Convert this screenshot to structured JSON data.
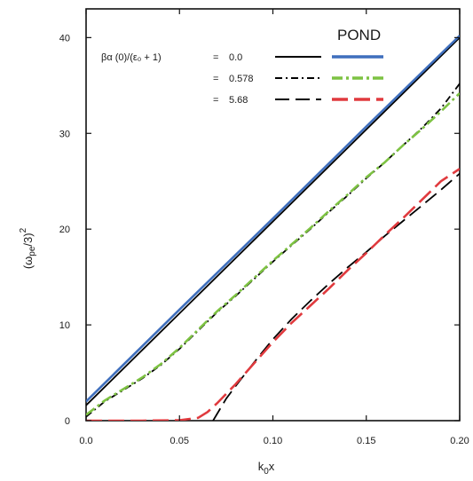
{
  "chart_data": {
    "type": "line",
    "xlabel": "k₀x",
    "ylabel": "(ωpe/3)²",
    "xlim": [
      0.0,
      0.2
    ],
    "ylim": [
      0,
      43
    ],
    "xticks": [
      0.0,
      0.05,
      0.1,
      0.15,
      0.2
    ],
    "xtick_labels": [
      "0.0",
      "0.05",
      "0.10",
      "0.15",
      "0.20"
    ],
    "yticks": [
      0,
      10,
      20,
      30,
      40
    ],
    "ytick_labels": [
      "0",
      "10",
      "20",
      "30",
      "40"
    ],
    "grid": false,
    "legend": {
      "placement": "top-right",
      "param_label": "βα (0)/(ε₀ + 1)",
      "column_header": "POND",
      "entries": [
        {
          "prefix": "=",
          "value": "0.0"
        },
        {
          "prefix": "=",
          "value": "0.578"
        },
        {
          "prefix": "=",
          "value": "5.68"
        }
      ]
    },
    "series": [
      {
        "param": "0.0",
        "style": "solid",
        "color": "#000000",
        "x": [
          0.0,
          0.05,
          0.1,
          0.15,
          0.2
        ],
        "y": [
          1.6,
          11.2,
          20.8,
          30.4,
          40.0
        ]
      },
      {
        "param": "0.0",
        "pond": true,
        "style": "solid",
        "color": "#3f6fbd",
        "x": [
          0.0,
          0.05,
          0.1,
          0.15,
          0.2
        ],
        "y": [
          2.0,
          11.6,
          21.1,
          30.7,
          40.2
        ]
      },
      {
        "param": "0.578",
        "style": "dash-dot",
        "color": "#000000",
        "x": [
          0.0,
          0.01,
          0.02,
          0.03,
          0.04,
          0.05,
          0.06,
          0.07,
          0.08,
          0.09,
          0.1,
          0.11,
          0.12,
          0.13,
          0.14,
          0.15,
          0.16,
          0.17,
          0.18,
          0.19,
          0.2
        ],
        "y": [
          0.4,
          2.0,
          3.2,
          4.4,
          5.8,
          7.5,
          9.4,
          11.3,
          13.0,
          14.8,
          16.6,
          18.3,
          20.0,
          21.8,
          23.5,
          25.3,
          27.0,
          28.8,
          30.6,
          32.6,
          35.2
        ]
      },
      {
        "param": "0.578",
        "pond": true,
        "style": "dash-dot",
        "color": "#7dc242",
        "x": [
          0.0,
          0.01,
          0.02,
          0.03,
          0.04,
          0.05,
          0.06,
          0.07,
          0.08,
          0.09,
          0.1,
          0.11,
          0.12,
          0.13,
          0.14,
          0.15,
          0.16,
          0.17,
          0.18,
          0.19,
          0.2
        ],
        "y": [
          0.6,
          2.1,
          3.3,
          4.5,
          5.9,
          7.6,
          9.5,
          11.4,
          13.1,
          14.9,
          16.7,
          18.4,
          20.1,
          21.9,
          23.6,
          25.4,
          27.0,
          28.8,
          30.5,
          32.3,
          34.2
        ]
      },
      {
        "param": "5.68",
        "style": "long-dash",
        "color": "#000000",
        "x": [
          0.068,
          0.075,
          0.08,
          0.09,
          0.1,
          0.11,
          0.12,
          0.13,
          0.14,
          0.15,
          0.16,
          0.17,
          0.18,
          0.19,
          0.2
        ],
        "y": [
          0.0,
          2.3,
          3.6,
          6.1,
          8.5,
          10.6,
          12.5,
          14.3,
          16.0,
          17.6,
          19.3,
          20.9,
          22.5,
          24.1,
          25.8
        ]
      },
      {
        "param": "5.68",
        "pond": true,
        "style": "long-dash",
        "color": "#e03a3e",
        "x": [
          0.0,
          0.03,
          0.05,
          0.06,
          0.065,
          0.07,
          0.075,
          0.08,
          0.09,
          0.1,
          0.11,
          0.12,
          0.13,
          0.14,
          0.15,
          0.16,
          0.17,
          0.18,
          0.19,
          0.2
        ],
        "y": [
          0.0,
          0.0,
          0.05,
          0.3,
          0.9,
          1.8,
          2.8,
          3.8,
          6.0,
          8.2,
          10.2,
          12.0,
          13.8,
          15.7,
          17.5,
          19.4,
          21.2,
          23.1,
          25.0,
          26.3
        ]
      }
    ]
  }
}
